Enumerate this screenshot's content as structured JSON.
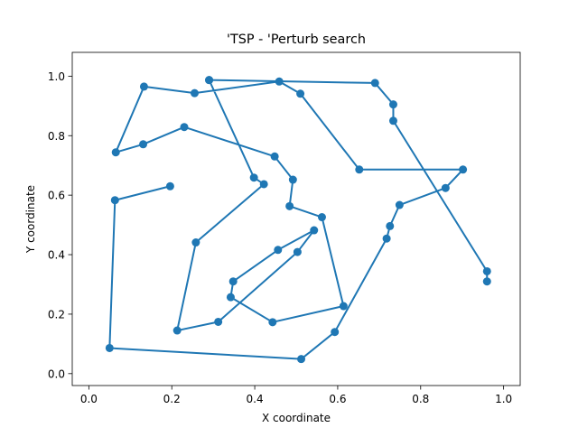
{
  "chart_data": {
    "type": "line",
    "title": "'TSP - 'Perturb search",
    "xlabel": "X coordinate",
    "ylabel": "Y coordinate",
    "xlim": [
      -0.04,
      1.04
    ],
    "ylim": [
      -0.04,
      1.08
    ],
    "xticks": [
      0.0,
      0.2,
      0.4,
      0.6,
      0.8,
      1.0
    ],
    "xtick_labels": [
      "0.0",
      "0.2",
      "0.4",
      "0.6",
      "0.8",
      "1.0"
    ],
    "yticks": [
      0.0,
      0.2,
      0.4,
      0.6,
      0.8,
      1.0
    ],
    "ytick_labels": [
      "0.0",
      "0.2",
      "0.4",
      "0.6",
      "0.8",
      "1.0"
    ],
    "grid": false,
    "markers": true,
    "color": "#1f77b4",
    "series": [
      {
        "x": [
          0.196,
          0.063,
          0.05,
          0.512,
          0.593,
          0.718,
          0.726,
          0.749,
          0.86,
          0.902,
          0.652,
          0.51,
          0.459,
          0.255,
          0.133,
          0.065,
          0.131,
          0.23,
          0.448,
          0.492,
          0.484,
          0.562,
          0.614,
          0.443,
          0.342,
          0.348,
          0.456,
          0.543,
          0.503,
          0.312,
          0.213,
          0.258,
          0.422,
          0.398,
          0.29
        ],
        "y": [
          0.63,
          0.583,
          0.086,
          0.049,
          0.14,
          0.454,
          0.496,
          0.567,
          0.624,
          0.686,
          0.686,
          0.941,
          0.982,
          0.943,
          0.965,
          0.744,
          0.771,
          0.829,
          0.73,
          0.652,
          0.563,
          0.526,
          0.227,
          0.173,
          0.257,
          0.31,
          0.416,
          0.482,
          0.409,
          0.174,
          0.145,
          0.441,
          0.637,
          0.659,
          0.987
        ]
      },
      {
        "x": [
          0.29,
          0.69,
          0.734,
          0.734,
          0.96,
          0.96
        ],
        "y": [
          0.987,
          0.977,
          0.905,
          0.85,
          0.344,
          0.31
        ]
      }
    ]
  }
}
